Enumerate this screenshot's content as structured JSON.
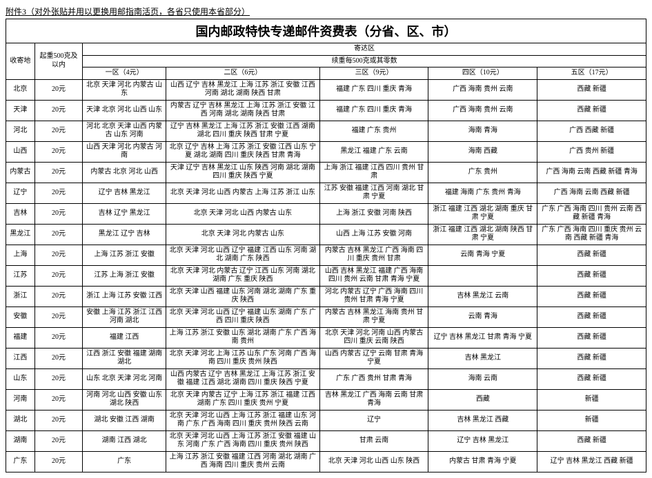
{
  "attachment_note": "附件3（对外张贴并用以更换用邮指南活页，各省只使用本省部分）",
  "title": "国内邮政特快专递邮件资费表（分省、区、市）",
  "header": {
    "dest_col": "收寄地",
    "base_weight": "起重500克及以内",
    "send_zone_top": "寄达区",
    "cont_weight": "续重每500克或其零数",
    "zones": [
      "一区（4元）",
      "二区（6元）",
      "三区（9元）",
      "四区（10元）",
      "五区（17元）"
    ]
  },
  "table": {
    "type": "table",
    "columns": [
      "收寄地",
      "起重500克及以内",
      "一区（4元）",
      "二区（6元）",
      "三区（9元）",
      "四区（10元）",
      "五区（17元）"
    ],
    "rows": [
      [
        "北京",
        "20元",
        "北京 天津 河北 内蒙古 山东",
        "山西 辽宁 吉林 黑龙江 上海 江苏 浙江 安徽 江西 河南 湖北 湖南 陕西 甘肃",
        "福建 广东 四川 重庆 青海",
        "广西 海南 贵州 云南",
        "西藏 新疆"
      ],
      [
        "天津",
        "20元",
        "天津 北京 河北 山西 山东",
        "内蒙古 辽宁 吉林 黑龙江 上海 江苏 浙江 安徽 江西 河南 湖北 湖南 陕西 甘肃",
        "福建 广东 四川 重庆 青海",
        "广西 海南 贵州 云南",
        "西藏 新疆"
      ],
      [
        "河北",
        "20元",
        "河北 北京 天津 山西 内蒙古 山东 河南",
        "辽宁 吉林 黑龙江 上海 江苏 浙江 安徽 江西 湖南 湖北 四川 重庆 陕西 甘肃 宁夏",
        "福建 广东 贵州",
        "海南 青海",
        "广西 西藏 新疆"
      ],
      [
        "山西",
        "20元",
        "山西 天津 河北 内蒙古 河南",
        "北京 辽宁 吉林 上海 江苏 浙江 安徽 江西 山东 宁夏 湖北 湖南 四川 重庆 陕西 甘肃 青海",
        "黑龙江 福建 广东 云南",
        "海南 西藏",
        "广西 贵州 新疆"
      ],
      [
        "内蒙古",
        "20元",
        "内蒙古 北京 河北 山西",
        "天津 辽宁 吉林 黑龙江 山东 陕西 河南 湖北 湖南 四川 重庆 陕西 宁夏",
        "上海 浙江 福建 江西 四川 贵州 甘肃",
        "广东 贵州",
        "广西 海南 云南 西藏 新疆 青海"
      ],
      [
        "辽宁",
        "20元",
        "辽宁 吉林 黑龙江",
        "北京 天津 河北 山西 内蒙古 上海 江苏 浙江 山东",
        "江苏 安徽 福建 江西 河南 湖北 甘肃 宁夏",
        "福建 海南 广东 贵州 青海",
        "广西 海南 云南 西藏 新疆"
      ],
      [
        "吉林",
        "20元",
        "吉林 辽宁 黑龙江",
        "北京 天津 河北 山西 内蒙古 山东",
        "上海 浙江 安徽 河南 陕西",
        "浙江 福建 江西 湖北 湖南 重庆 甘肃 宁夏",
        "广东 广西 海南 四川 贵州 云南 西藏 新疆 青海"
      ],
      [
        "黑龙江",
        "20元",
        "黑龙江 辽宁 吉林",
        "北京 天津 河北 内蒙古 山东",
        "山西 上海 江苏 安徽 河南",
        "浙江 福建 江西 湖北 湖南 陕西 甘肃 宁夏",
        "广东 广西 海南 四川 重庆 贵州 云南 西藏 新疆 青海"
      ],
      [
        "上海",
        "20元",
        "上海 江苏 浙江 安徽",
        "北京 天津 河北 山西 辽宁 福建 江西 山东 河南 湖北 湖南 广东 陕西",
        "内蒙古 吉林 黑龙江 广西 海南 四川 重庆 贵州 甘肃",
        "云南 青海 宁夏",
        "西藏 新疆"
      ],
      [
        "江苏",
        "20元",
        "江苏 上海 浙江 安徽",
        "北京 天津 河北 内蒙古 辽宁 江西 山东 河南 湖北 湖南 广东 重庆 陕西",
        "山西 吉林 黑龙江 福建 广西 海南 四川 贵州 云南 甘肃 青海 宁夏",
        "",
        "西藏 新疆"
      ],
      [
        "浙江",
        "20元",
        "浙江 上海 江苏 安徽 江西",
        "北京 天津 山西 福建 山东 河南 湖北 湖南 广东 重庆 陕西",
        "河北 内蒙古 辽宁 广西 海南 四川 贵州 甘肃 青海 宁夏",
        "吉林 黑龙江 云南",
        "西藏 新疆"
      ],
      [
        "安徽",
        "20元",
        "安徽 上海 江苏 浙江 江西 河南 湖北",
        "北京 天津 河北 山西 辽宁 福建 山东 湖南 广东 广西 四川 重庆 陕西",
        "内蒙古 吉林 黑龙江 海南 贵州 甘肃 宁夏",
        "云南 青海",
        "西藏 新疆"
      ],
      [
        "福建",
        "20元",
        "福建 江西",
        "上海 江苏 浙江 安徽 山东 湖北 湖南 广东 广西 海南 贵州",
        "北京 天津 河北 河南 山西 内蒙古 四川 重庆 云南 陕西",
        "辽宁 吉林 黑龙江 甘肃 青海 宁夏",
        "西藏 新疆"
      ],
      [
        "江西",
        "20元",
        "江西 浙江 安徽 福建 湖南 湖北",
        "北京 天津 河北 上海 江苏 山东 广东 河南 广西 海南 四川 重庆 贵州 陕西",
        "山西 内蒙古 辽宁 云南 甘肃 青海 宁夏",
        "吉林 黑龙江",
        "西藏 新疆"
      ],
      [
        "山东",
        "20元",
        "山东 北京 天津 河北 河南",
        "山西 内蒙古 辽宁 吉林 黑龙江 上海 江苏 浙江 安徽 福建 江西 湖北 湖南 四川 重庆 陕西 宁夏",
        "广东 广西 贵州 甘肃 青海",
        "海南 云南",
        "西藏 新疆"
      ],
      [
        "河南",
        "20元",
        "河南 河北 山西 安徽 山东 湖北 陕西",
        "北京 天津 内蒙古 辽宁 上海 江苏 浙江 福建 江西 湖南 广东 四川 重庆 贵州 宁夏",
        "吉林 黑龙江 广西 海南 云南 甘肃 青海",
        "西藏",
        "新疆"
      ],
      [
        "湖北",
        "20元",
        "湖北 安徽 江西 湖南",
        "北京 天津 河北 山西 上海 江苏 浙江 福建 山东 河南 广东 广西 海南 四川 重庆 贵州 陕西 云南",
        "辽宁",
        "吉林 黑龙江 西藏",
        "新疆"
      ],
      [
        "湖南",
        "20元",
        "湖南 江西 湖北",
        "北京 天津 河北 山西 上海 江苏 浙江 安徽 福建 山东 河南 广东 广西 海南 四川 重庆 贵州 陕西",
        "甘肃 云南",
        "辽宁 吉林 黑龙江",
        "西藏 新疆"
      ],
      [
        "广东",
        "20元",
        "广东",
        "上海 江苏 浙江 安徽 福建 江西 河南 湖北 湖南 广西 海南 四川 重庆 贵州 云南",
        "北京 天津 河北 山西 山东 陕西",
        "内蒙古 甘肃 青海 宁夏",
        "辽宁 吉林 黑龙江 西藏 新疆"
      ]
    ],
    "border_color": "#000000",
    "background_color": "#ffffff",
    "font_size_pt": 8,
    "title_font_size_pt": 14
  }
}
